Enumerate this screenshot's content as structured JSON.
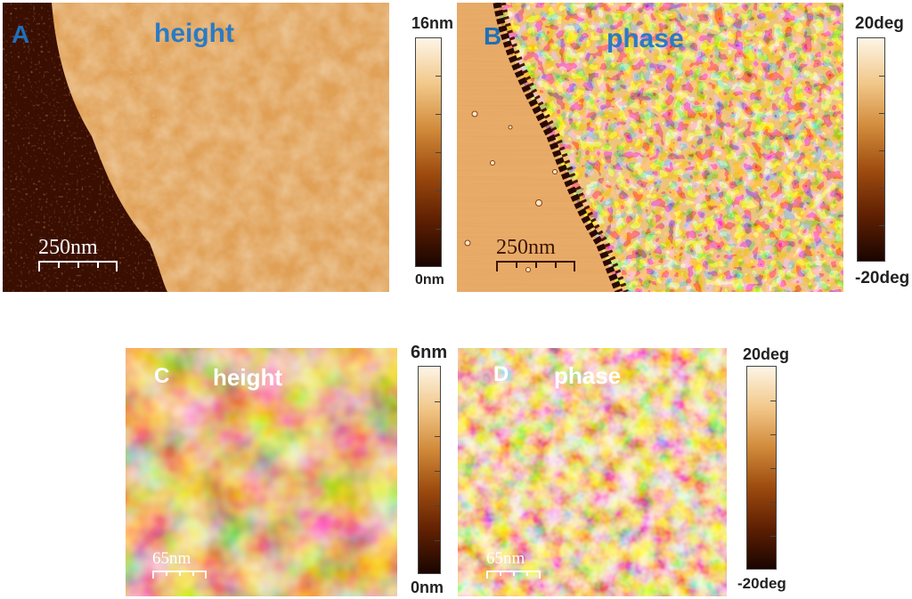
{
  "panels": {
    "a": {
      "letter": "A",
      "mode": "height",
      "scale": "250nm",
      "letter_color": "#1f6fb8",
      "mode_color": "#2a7bc4",
      "cb_max": "16nm",
      "cb_min": "0nm"
    },
    "b": {
      "letter": "B",
      "mode": "phase",
      "scale": "250nm",
      "letter_color": "#1f6fb8",
      "mode_color": "#2a7bc4",
      "cb_max": "20deg",
      "cb_min": "-20deg"
    },
    "c": {
      "letter": "C",
      "mode": "height",
      "scale": "65nm",
      "letter_color": "#ffffff",
      "mode_color": "#ffffff",
      "cb_max": "6nm",
      "cb_min": "0nm"
    },
    "d": {
      "letter": "D",
      "mode": "phase",
      "scale": "65nm",
      "letter_color": "#ffffff",
      "mode_color": "#ffffff",
      "cb_max": "20deg",
      "cb_min": "-20deg"
    }
  },
  "colormap": [
    "#1a0500",
    "#5e1f02",
    "#9c4a0e",
    "#d18a3a",
    "#f2c88a",
    "#fdf5e6"
  ]
}
